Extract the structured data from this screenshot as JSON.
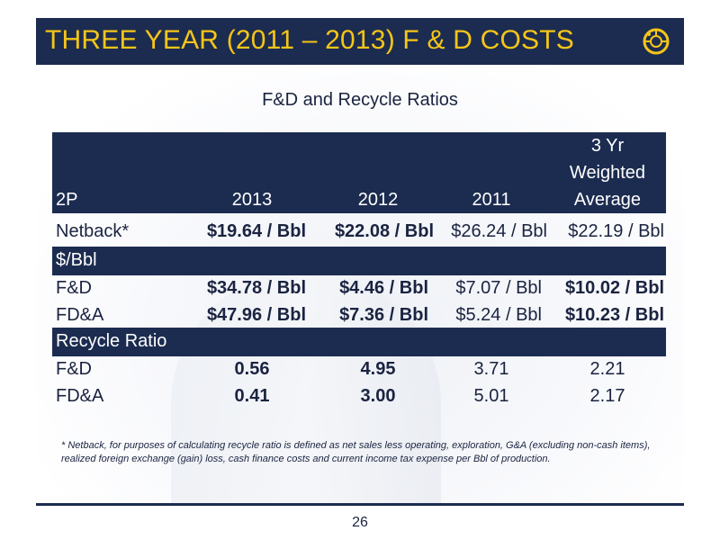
{
  "slide": {
    "title": "THREE YEAR (2011 – 2013) F & D COSTS",
    "subtitle": "F&D and Recycle Ratios",
    "page_number": "26",
    "footnote": "* Netback, for purposes of calculating recycle ratio is defined as net sales less operating, exploration, G&A (excluding non-cash items), realized foreign exchange (gain) loss, cash finance costs and current income tax expense per Bbl of production."
  },
  "colors": {
    "navy": "#1c2c50",
    "title_yellow": "#f5c518"
  },
  "table": {
    "header": {
      "col0": "2P",
      "col1": "2013",
      "col2": "2012",
      "col3": "2011",
      "col4_line1": "3 Yr",
      "col4_line2": "Weighted",
      "col4_line3": "Average"
    },
    "netback": {
      "label": "Netback*",
      "v2013": "$19.64 / Bbl",
      "v2012": "$22.08 / Bbl",
      "v2011": "$26.24 / Bbl",
      "avg": "$22.19 / Bbl"
    },
    "section1": "$/Bbl",
    "fd": {
      "label": "F&D",
      "v2013": "$34.78 / Bbl",
      "v2012": "$4.46 / Bbl",
      "v2011": "$7.07 / Bbl",
      "avg": "$10.02 / Bbl"
    },
    "fda": {
      "label": "FD&A",
      "v2013": "$47.96 / Bbl",
      "v2012": "$7.36 / Bbl",
      "v2011": "$5.24 / Bbl",
      "avg": "$10.23 / Bbl"
    },
    "section2": "Recycle Ratio",
    "rr_fd": {
      "label": "F&D",
      "v2013": "0.56",
      "v2012": "4.95",
      "v2011": "3.71",
      "avg": "2.21"
    },
    "rr_fda": {
      "label": "FD&A",
      "v2013": "0.41",
      "v2012": "3.00",
      "v2011": "5.01",
      "avg": "2.17"
    }
  }
}
